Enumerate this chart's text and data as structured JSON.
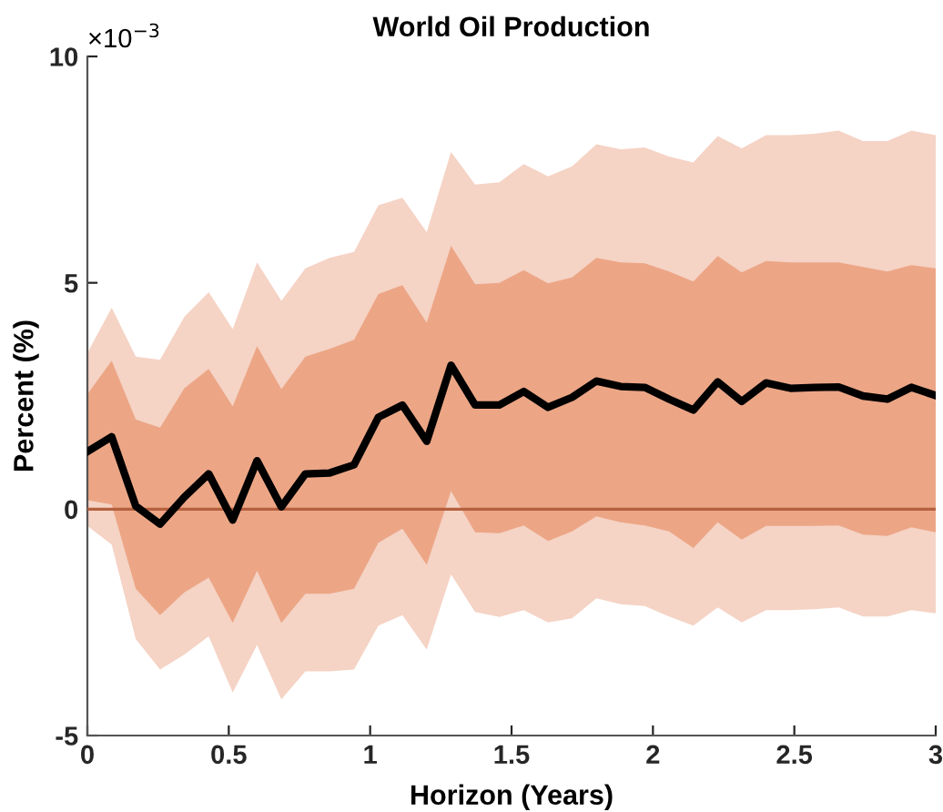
{
  "chart_data": {
    "type": "line",
    "title": "World Oil Production",
    "xlabel": "Horizon (Years)",
    "ylabel": "Percent (%)",
    "annotations": [
      "×10$^{−3}$"
    ],
    "x": [
      0,
      0.086,
      0.171,
      0.257,
      0.343,
      0.429,
      0.514,
      0.6,
      0.686,
      0.771,
      0.857,
      0.943,
      1.029,
      1.114,
      1.2,
      1.286,
      1.371,
      1.457,
      1.543,
      1.629,
      1.714,
      1.8,
      1.886,
      1.971,
      2.057,
      2.143,
      2.229,
      2.314,
      2.4,
      2.486,
      2.571,
      2.657,
      2.743,
      2.829,
      2.914,
      3
    ],
    "series": [
      {
        "color": "#f5d3c5",
        "values": [
          null,
          null,
          null,
          null,
          null,
          null,
          null,
          null,
          null,
          null,
          null,
          null,
          null,
          null,
          null,
          null,
          null,
          null,
          null,
          null,
          null,
          null,
          null,
          null,
          null,
          null,
          null,
          null,
          null,
          null,
          null,
          null,
          null,
          null,
          null,
          null
        ],
        "lower": [
          -0.37,
          -0.78,
          -2.87,
          -3.54,
          -3.21,
          -2.81,
          -4.05,
          -3.0,
          -4.2,
          -3.58,
          -3.58,
          -3.54,
          -2.57,
          -2.34,
          -3.1,
          -1.44,
          -2.27,
          -2.38,
          -2.23,
          -2.5,
          -2.41,
          -1.97,
          -2.1,
          -2.14,
          -2.37,
          -2.57,
          -2.17,
          -2.5,
          -2.23,
          -2.23,
          -2.21,
          -2.17,
          -2.37,
          -2.37,
          -2.23,
          -2.3
        ],
        "upper": [
          3.45,
          4.45,
          3.37,
          3.3,
          4.25,
          4.79,
          3.98,
          5.45,
          4.6,
          5.32,
          5.55,
          5.68,
          6.71,
          6.88,
          6.12,
          7.89,
          7.17,
          7.22,
          7.62,
          7.35,
          7.57,
          8.06,
          7.95,
          7.99,
          7.79,
          7.66,
          8.24,
          7.97,
          8.26,
          8.26,
          8.29,
          8.36,
          8.13,
          8.13,
          8.36,
          8.26
        ]
      },
      {
        "color": "#eca686",
        "values": [
          null,
          null,
          null,
          null,
          null,
          null,
          null,
          null,
          null,
          null,
          null,
          null,
          null,
          null,
          null,
          null,
          null,
          null,
          null,
          null,
          null,
          null,
          null,
          null,
          null,
          null,
          null,
          null,
          null,
          null,
          null,
          null,
          null,
          null,
          null,
          null
        ],
        "lower": [
          0.2,
          0.1,
          -1.76,
          -2.34,
          -1.84,
          -1.51,
          -2.51,
          -1.36,
          -2.51,
          -1.87,
          -1.87,
          -1.76,
          -0.74,
          -0.43,
          -1.23,
          0.4,
          -0.51,
          -0.53,
          -0.36,
          -0.7,
          -0.49,
          -0.16,
          -0.29,
          -0.36,
          -0.49,
          -0.86,
          -0.29,
          -0.67,
          -0.37,
          -0.37,
          -0.37,
          -0.36,
          -0.56,
          -0.59,
          -0.4,
          -0.51
        ],
        "upper": [
          2.54,
          3.28,
          1.98,
          1.8,
          2.67,
          3.1,
          2.27,
          3.6,
          2.65,
          3.37,
          3.54,
          3.74,
          4.75,
          4.95,
          4.12,
          5.82,
          4.97,
          5.0,
          5.28,
          4.99,
          5.12,
          5.55,
          5.45,
          5.43,
          5.25,
          5.03,
          5.59,
          5.23,
          5.48,
          5.45,
          5.45,
          5.45,
          5.35,
          5.25,
          5.39,
          5.32
        ]
      },
      {
        "type": "line",
        "color": "#000000",
        "values": [
          1.27,
          1.6,
          0.07,
          -0.33,
          0.27,
          0.78,
          -0.24,
          1.07,
          0.05,
          0.78,
          0.8,
          0.98,
          2.03,
          2.3,
          1.5,
          3.18,
          2.3,
          2.3,
          2.6,
          2.25,
          2.47,
          2.83,
          2.71,
          2.69,
          2.43,
          2.19,
          2.81,
          2.38,
          2.79,
          2.67,
          2.69,
          2.7,
          2.5,
          2.43,
          2.69,
          2.51
        ]
      }
    ],
    "ref_lines": [
      {
        "axis": "y",
        "value": 0,
        "color": "#b5603f"
      }
    ],
    "xlim": [
      0,
      3
    ],
    "ylim": [
      -5,
      10
    ],
    "xticks": [
      0,
      0.5,
      1,
      1.5,
      2,
      2.5,
      3
    ],
    "yticks": [
      -5,
      0,
      5,
      10
    ],
    "grid": false,
    "marker": "none",
    "line_style": "solid"
  }
}
